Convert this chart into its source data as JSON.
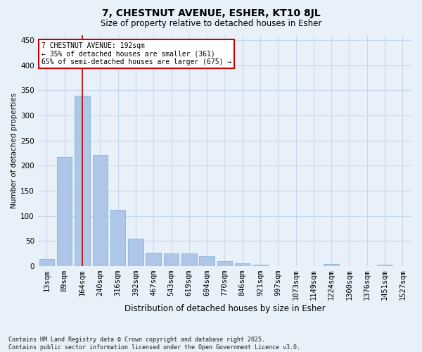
{
  "title": "7, CHESTNUT AVENUE, ESHER, KT10 8JL",
  "subtitle": "Size of property relative to detached houses in Esher",
  "xlabel": "Distribution of detached houses by size in Esher",
  "ylabel": "Number of detached properties",
  "categories": [
    "13sqm",
    "89sqm",
    "164sqm",
    "240sqm",
    "316sqm",
    "392sqm",
    "467sqm",
    "543sqm",
    "619sqm",
    "694sqm",
    "770sqm",
    "846sqm",
    "921sqm",
    "997sqm",
    "1073sqm",
    "1149sqm",
    "1224sqm",
    "1300sqm",
    "1376sqm",
    "1451sqm",
    "1527sqm"
  ],
  "values": [
    14,
    217,
    340,
    222,
    112,
    54,
    26,
    25,
    25,
    19,
    9,
    5,
    3,
    0,
    0,
    0,
    4,
    0,
    0,
    3,
    0
  ],
  "bar_color": "#aec6e8",
  "bar_edge_color": "#7aaed0",
  "grid_color": "#c8d8ec",
  "bg_color": "#e8f0fa",
  "vline_x": 2,
  "vline_color": "#cc0000",
  "annotation_text": "7 CHESTNUT AVENUE: 192sqm\n← 35% of detached houses are smaller (361)\n65% of semi-detached houses are larger (675) →",
  "annotation_box_color": "#ffffff",
  "annotation_box_edge": "#cc0000",
  "footer": "Contains HM Land Registry data © Crown copyright and database right 2025.\nContains public sector information licensed under the Open Government Licence v3.0.",
  "ylim": [
    0,
    460
  ],
  "yticks": [
    0,
    50,
    100,
    150,
    200,
    250,
    300,
    350,
    400,
    450
  ]
}
